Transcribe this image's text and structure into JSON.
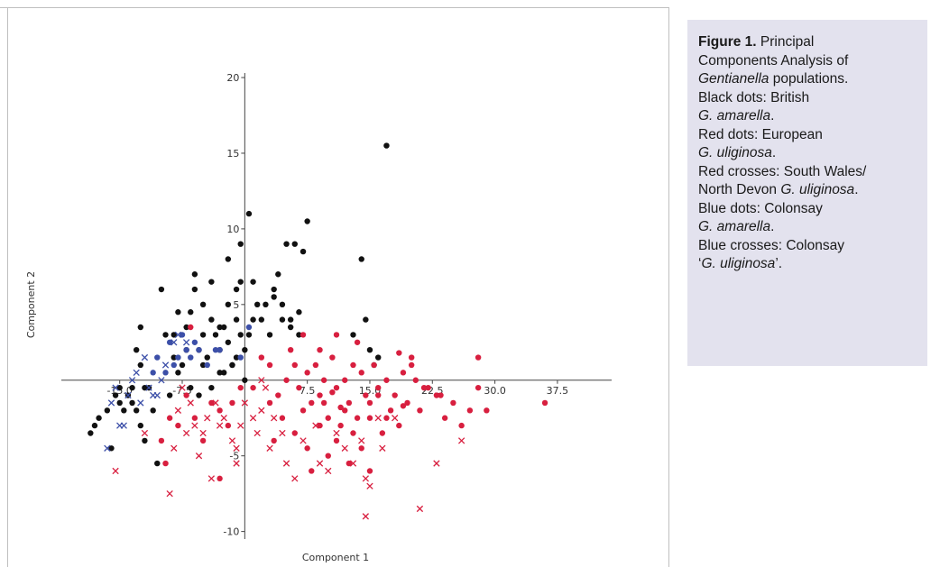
{
  "chart_data": {
    "type": "scatter",
    "xlabel": "Component 1",
    "ylabel": "Component 2",
    "xlim": [
      -22,
      44
    ],
    "ylim": [
      -10.5,
      20.3
    ],
    "x_ticks": [
      {
        "value": -15,
        "label": "-15.0"
      },
      {
        "value": -7.5,
        "label": "-7.5"
      },
      {
        "value": 7.5,
        "label": "7.5"
      },
      {
        "value": 15,
        "label": "15.0"
      },
      {
        "value": 22.5,
        "label": "22.5"
      },
      {
        "value": 30,
        "label": "30.0"
      },
      {
        "value": 37.5,
        "label": "37.5"
      }
    ],
    "y_ticks": [
      {
        "value": 20,
        "label": "20"
      },
      {
        "value": 15,
        "label": "15"
      },
      {
        "value": 10,
        "label": "10"
      },
      {
        "value": 5,
        "label": "5"
      },
      {
        "value": -5,
        "label": "-5"
      },
      {
        "value": -10,
        "label": "-10"
      }
    ],
    "series": [
      {
        "marker": "dot",
        "color": "#111111",
        "points": [
          [
            -18.5,
            -3.5
          ],
          [
            -18,
            -3
          ],
          [
            -17.5,
            -2.5
          ],
          [
            -16.5,
            -2
          ],
          [
            -16,
            -4.5
          ],
          [
            -15.5,
            -1
          ],
          [
            -15,
            -0.5
          ],
          [
            -15,
            -1.5
          ],
          [
            -14.5,
            -2
          ],
          [
            -14,
            -1
          ],
          [
            -13.5,
            -0.5
          ],
          [
            -13.5,
            -1.5
          ],
          [
            -13,
            -2
          ],
          [
            -12.5,
            -3
          ],
          [
            -12,
            -4
          ],
          [
            -12,
            -0.5
          ],
          [
            -11,
            -2
          ],
          [
            -10.5,
            -5.5
          ],
          [
            -13,
            2
          ],
          [
            -12.5,
            3.5
          ],
          [
            -10,
            6
          ],
          [
            -9.5,
            3
          ],
          [
            -8.5,
            1.5
          ],
          [
            -8,
            0.5
          ],
          [
            -7.5,
            1
          ],
          [
            -7,
            3.5
          ],
          [
            -6.5,
            4.5
          ],
          [
            -6,
            6
          ],
          [
            -5.5,
            2
          ],
          [
            -5,
            3
          ],
          [
            -4.5,
            1.5
          ],
          [
            -4,
            4
          ],
          [
            -3.5,
            3
          ],
          [
            -3,
            2
          ],
          [
            -2.5,
            3.5
          ],
          [
            -2,
            2.5
          ],
          [
            -1.5,
            1
          ],
          [
            -1,
            4
          ],
          [
            -0.5,
            3
          ],
          [
            0,
            2
          ],
          [
            -8.5,
            3
          ],
          [
            -8,
            4.5
          ],
          [
            -7,
            2
          ],
          [
            -6,
            7
          ],
          [
            -5,
            5
          ],
          [
            -4,
            6.5
          ],
          [
            -3,
            3.5
          ],
          [
            -2,
            5
          ],
          [
            -1,
            6
          ],
          [
            0.5,
            3
          ],
          [
            1,
            4
          ],
          [
            1.5,
            5
          ],
          [
            2,
            4
          ],
          [
            2.5,
            5
          ],
          [
            3,
            3
          ],
          [
            3.5,
            6
          ],
          [
            4,
            7
          ],
          [
            4.5,
            5
          ],
          [
            5,
            9
          ],
          [
            5.5,
            4
          ],
          [
            6,
            9
          ],
          [
            7,
            8.5
          ],
          [
            7.5,
            10.5
          ],
          [
            0.5,
            11
          ],
          [
            -0.5,
            9
          ],
          [
            -0.5,
            6.5
          ],
          [
            -2,
            8
          ],
          [
            -1.5,
            1
          ],
          [
            -2.5,
            0.5
          ],
          [
            0,
            0
          ],
          [
            1,
            6.5
          ],
          [
            3.5,
            5.5
          ],
          [
            4.5,
            4
          ],
          [
            5.5,
            3.5
          ],
          [
            6.5,
            3
          ],
          [
            6.5,
            4.5
          ],
          [
            -4,
            -0.5
          ],
          [
            -3,
            0.5
          ],
          [
            -5,
            1
          ],
          [
            -5.5,
            -1
          ],
          [
            14,
            8
          ],
          [
            14.5,
            4
          ],
          [
            15,
            2
          ],
          [
            15.5,
            1
          ],
          [
            16,
            1.5
          ],
          [
            13,
            3
          ],
          [
            17,
            15.5
          ],
          [
            -11.5,
            -0.5
          ],
          [
            -12.5,
            1
          ],
          [
            -9,
            -1
          ],
          [
            -1,
            1.5
          ],
          [
            -6.5,
            -0.5
          ]
        ]
      },
      {
        "marker": "dot",
        "color": "#d81f3f",
        "points": [
          [
            -6.5,
            3.5
          ],
          [
            2,
            1.5
          ],
          [
            3,
            1
          ],
          [
            4,
            -1
          ],
          [
            5,
            0
          ],
          [
            5.5,
            2
          ],
          [
            6,
            1
          ],
          [
            6.5,
            -0.5
          ],
          [
            7,
            -2
          ],
          [
            7.5,
            0.5
          ],
          [
            8,
            -1.5
          ],
          [
            8.5,
            1
          ],
          [
            9,
            -1
          ],
          [
            9.5,
            0
          ],
          [
            10,
            -2.5
          ],
          [
            10.5,
            1.5
          ],
          [
            11,
            -0.5
          ],
          [
            11.5,
            -3
          ],
          [
            12,
            0
          ],
          [
            12.5,
            -1.5
          ],
          [
            13,
            1
          ],
          [
            13.5,
            -2.5
          ],
          [
            14,
            0.5
          ],
          [
            14.5,
            -1
          ],
          [
            15,
            -2.5
          ],
          [
            15.5,
            1
          ],
          [
            16,
            -0.5
          ],
          [
            16.5,
            -3.5
          ],
          [
            17,
            0
          ],
          [
            17.5,
            -2
          ],
          [
            18,
            -1
          ],
          [
            18.5,
            -3
          ],
          [
            19,
            0.5
          ],
          [
            19.5,
            -1.5
          ],
          [
            20,
            1.5
          ],
          [
            20.5,
            0
          ],
          [
            21,
            -2
          ],
          [
            22,
            -0.5
          ],
          [
            23,
            -1
          ],
          [
            24,
            -2.5
          ],
          [
            25,
            -1.5
          ],
          [
            26,
            -3
          ],
          [
            27,
            -2
          ],
          [
            28,
            -0.5
          ],
          [
            29,
            -2
          ],
          [
            36,
            -1.5
          ],
          [
            28,
            1.5
          ],
          [
            20,
            1
          ],
          [
            11,
            3
          ],
          [
            9,
            2
          ],
          [
            7,
            3
          ],
          [
            3.5,
            -4
          ],
          [
            4.5,
            -2.5
          ],
          [
            6,
            -3.5
          ],
          [
            7.5,
            -4.5
          ],
          [
            9,
            -3
          ],
          [
            10,
            -5
          ],
          [
            11,
            -4
          ],
          [
            12.5,
            -5.5
          ],
          [
            13,
            -3.5
          ],
          [
            14,
            -4.5
          ],
          [
            -1.5,
            -1.5
          ],
          [
            -2,
            -3
          ],
          [
            -3,
            -2
          ],
          [
            -4,
            -1.5
          ],
          [
            -5,
            -4
          ],
          [
            -6,
            -2.5
          ],
          [
            -7,
            -1
          ],
          [
            -8,
            -3
          ],
          [
            -9,
            -2.5
          ],
          [
            -10,
            -4
          ],
          [
            -9.5,
            -5.5
          ],
          [
            -3,
            -6.5
          ],
          [
            8,
            -6
          ],
          [
            12,
            -2
          ],
          [
            15,
            -6
          ],
          [
            16,
            -1
          ],
          [
            18.5,
            1.8
          ],
          [
            21.5,
            -0.5
          ],
          [
            19,
            -1.7
          ],
          [
            23.5,
            -1
          ],
          [
            9.5,
            -1.5
          ],
          [
            10.5,
            -0.8
          ],
          [
            11.5,
            -1.8
          ],
          [
            3,
            -1.5
          ],
          [
            1,
            -0.5
          ],
          [
            -0.5,
            -0.5
          ],
          [
            13.5,
            2.5
          ],
          [
            15,
            -1.5
          ],
          [
            17,
            -2.5
          ]
        ]
      },
      {
        "marker": "cross",
        "color": "#d81f3f",
        "points": [
          [
            -15.5,
            -6
          ],
          [
            -12,
            -3.5
          ],
          [
            -9,
            -7.5
          ],
          [
            -8.5,
            -4.5
          ],
          [
            -8,
            -2
          ],
          [
            -7,
            -3.5
          ],
          [
            -6.5,
            -1.5
          ],
          [
            -6,
            -3
          ],
          [
            -5,
            -3.5
          ],
          [
            -4.5,
            -2.5
          ],
          [
            -5.5,
            -5
          ],
          [
            -4,
            -6.5
          ],
          [
            -3,
            -3
          ],
          [
            -2.5,
            -2.5
          ],
          [
            -1.5,
            -4
          ],
          [
            -1,
            -5.5
          ],
          [
            -0.5,
            -3
          ],
          [
            0,
            -1.5
          ],
          [
            1,
            -2.5
          ],
          [
            2,
            -2
          ],
          [
            2.5,
            -0.5
          ],
          [
            3,
            -4.5
          ],
          [
            1.5,
            -3.5
          ],
          [
            -1,
            -4.5
          ],
          [
            3.5,
            -2.5
          ],
          [
            4.5,
            -3.5
          ],
          [
            5,
            -5.5
          ],
          [
            6,
            -6.5
          ],
          [
            7,
            -4
          ],
          [
            8.5,
            -3
          ],
          [
            9,
            -5.5
          ],
          [
            10,
            -6
          ],
          [
            11,
            -3.5
          ],
          [
            12,
            -4.5
          ],
          [
            13,
            -5.5
          ],
          [
            14,
            -4
          ],
          [
            14.5,
            -6.5
          ],
          [
            15,
            -7
          ],
          [
            16,
            -2.5
          ],
          [
            16.5,
            -4.5
          ],
          [
            14.5,
            -9
          ],
          [
            21,
            -8.5
          ],
          [
            23,
            -5.5
          ],
          [
            26,
            -4
          ],
          [
            18,
            -2.5
          ],
          [
            -7.5,
            -0.5
          ],
          [
            -3.5,
            -1.5
          ],
          [
            2,
            0
          ]
        ]
      },
      {
        "marker": "dot",
        "color": "#3c4fa8",
        "points": [
          [
            -11,
            0.5
          ],
          [
            -10.5,
            1.5
          ],
          [
            -9.5,
            0.5
          ],
          [
            -9,
            2.5
          ],
          [
            -8,
            1.5
          ],
          [
            -7.5,
            3
          ],
          [
            -7,
            2
          ],
          [
            -6.5,
            1.5
          ],
          [
            -6,
            2.5
          ],
          [
            -5.5,
            2
          ],
          [
            -4.5,
            1
          ],
          [
            -3.5,
            2
          ],
          [
            -3,
            2
          ],
          [
            -0.5,
            1.5
          ],
          [
            0.5,
            3.5
          ],
          [
            -8.5,
            1
          ]
        ]
      },
      {
        "marker": "cross",
        "color": "#3c4fa8",
        "points": [
          [
            -16.5,
            -4.5
          ],
          [
            -16,
            -1.5
          ],
          [
            -15,
            -3
          ],
          [
            -14.5,
            -3
          ],
          [
            -14,
            -1
          ],
          [
            -13.5,
            0
          ],
          [
            -13,
            0.5
          ],
          [
            -12.5,
            -1.5
          ],
          [
            -12,
            1.5
          ],
          [
            -11.5,
            -0.5
          ],
          [
            -10.5,
            -1
          ],
          [
            -10,
            0
          ],
          [
            -9.5,
            1
          ],
          [
            -8.5,
            2.5
          ],
          [
            -8,
            3
          ],
          [
            -7,
            2.5
          ],
          [
            -11,
            -1
          ],
          [
            -15.5,
            -0.5
          ]
        ]
      }
    ]
  },
  "caption": {
    "heading": "Figure 1.",
    "lines": {
      "l1_rest": " Principal",
      "l2": "Components Analysis of",
      "l3_ital": "Gentianella",
      "l3_rest": " populations.",
      "l4": "Black dots: British",
      "l5_ital": "G. amarella",
      "l5_rest": ".",
      "l6": "Red dots: European",
      "l7_ital": "G. uliginosa",
      "l7_rest": ".",
      "l8": "Red crosses: South Wales/",
      "l9_pre": "North Devon ",
      "l9_ital": "G. uliginosa",
      "l9_rest": ".",
      "l10": "Blue dots: Colonsay",
      "l11_ital": "G. amarella",
      "l11_rest": ".",
      "l12": "Blue crosses: Colonsay",
      "l13_pre": "‘",
      "l13_ital": "G. uliginosa",
      "l13_rest": "’."
    }
  }
}
